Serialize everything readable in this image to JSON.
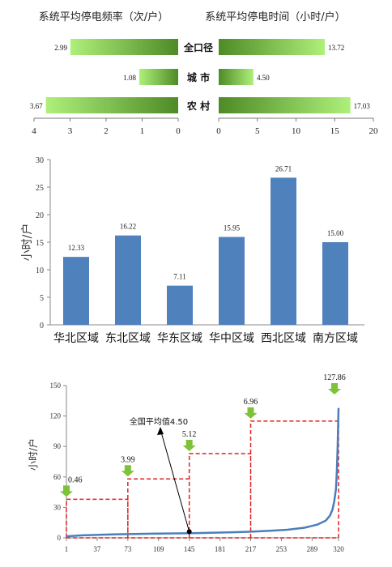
{
  "chart_data": [
    {
      "type": "bar",
      "orientation": "horizontal",
      "layout": "butterfly",
      "categories": [
        "全口径",
        "城 市",
        "农 村"
      ],
      "left_panel": {
        "title": "系统平均停电频率（次/户）",
        "values": [
          2.99,
          1.08,
          3.67
        ],
        "data_labels": [
          "2.99",
          "1.08",
          "3.67"
        ],
        "xlim": [
          0,
          4
        ],
        "reversed": true,
        "ticks": [
          "4",
          "3",
          "2",
          "1",
          "0"
        ]
      },
      "right_panel": {
        "title": "系统平均停电时间（小时/户）",
        "values": [
          13.72,
          4.5,
          17.03
        ],
        "data_labels": [
          "13.72",
          "4.50",
          "17.03"
        ],
        "xlim": [
          0,
          20
        ],
        "ticks": [
          "0",
          "5",
          "10",
          "15",
          "20"
        ]
      },
      "bar_gradient": [
        "#aef07a",
        "#4e8a26"
      ]
    },
    {
      "type": "bar",
      "categories": [
        "华北区域",
        "东北区域",
        "华东区域",
        "华中区域",
        "西北区域",
        "南方区域"
      ],
      "values": [
        12.33,
        16.22,
        7.11,
        15.95,
        26.71,
        15.0
      ],
      "data_labels": [
        "12.33",
        "16.22",
        "7.11",
        "15.95",
        "26.71",
        "15.00"
      ],
      "ylabel": "小时/户",
      "ylim": [
        0,
        30
      ],
      "yticks": [
        "0",
        "5",
        "10",
        "15",
        "20",
        "25",
        "30"
      ],
      "bar_color": "#4f81bd",
      "grid": false
    },
    {
      "type": "line",
      "ylabel": "小时/户",
      "ylim": [
        0,
        150
      ],
      "yticks": [
        "0",
        "30",
        "60",
        "90",
        "120",
        "150"
      ],
      "xlim": [
        1,
        320
      ],
      "xticks": [
        "1",
        "37",
        "73",
        "109",
        "145",
        "181",
        "217",
        "253",
        "289",
        "320"
      ],
      "series": [
        {
          "x": [
            1,
            20,
            40,
            60,
            80,
            100,
            120,
            140,
            160,
            180,
            200,
            220,
            240,
            260,
            280,
            295,
            305,
            310,
            313,
            315,
            317,
            318,
            319,
            320
          ],
          "values": [
            1.5,
            2.5,
            3.0,
            3.5,
            3.8,
            4.1,
            4.3,
            4.5,
            4.8,
            5.2,
            5.6,
            6.2,
            7.0,
            8.0,
            10.0,
            13.0,
            17.0,
            22.0,
            28.0,
            36.0,
            48.0,
            65.0,
            90.0,
            127.86
          ]
        }
      ],
      "step_levels": [
        {
          "x_range": [
            1,
            73
          ],
          "level": 38
        },
        {
          "x_range": [
            73,
            145
          ],
          "level": 58
        },
        {
          "x_range": [
            145,
            217
          ],
          "level": 83
        },
        {
          "x_range": [
            217,
            320
          ],
          "level": 115
        }
      ],
      "arrow_labels": [
        "0.46",
        "3.99",
        "5.12",
        "6.96",
        "127.86"
      ],
      "annotation": {
        "text": "全国平均值4.50",
        "x": 145,
        "y": 4.5
      },
      "line_color": "#4a7ebb",
      "step_color": "#e02020",
      "arrow_color": "#7ec23a"
    }
  ]
}
